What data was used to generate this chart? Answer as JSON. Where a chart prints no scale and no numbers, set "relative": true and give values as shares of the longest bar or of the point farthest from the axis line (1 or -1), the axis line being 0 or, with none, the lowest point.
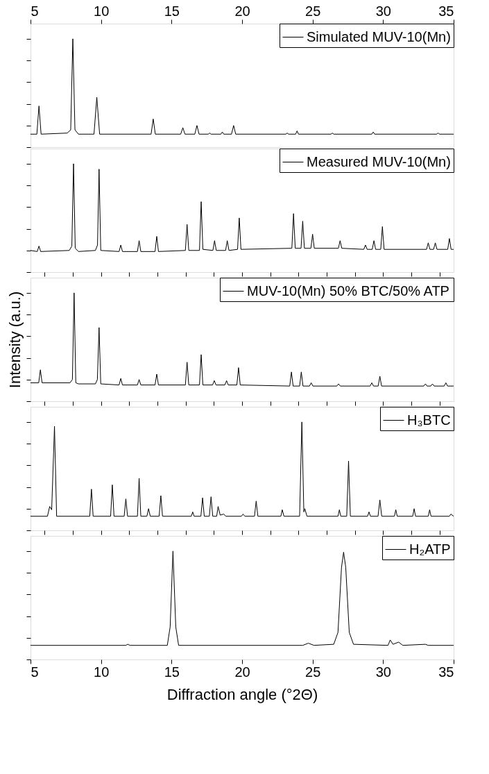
{
  "chart_data": [
    {
      "type": "line",
      "relative": true,
      "xlim": [
        5,
        35
      ],
      "xticks": [
        5,
        10,
        15,
        20,
        25,
        30,
        35
      ],
      "tick_labels": "x",
      "legend": "top right",
      "grid": false,
      "series": [
        {
          "name": "Simulated MUV-10(Mn)",
          "color": "#000000",
          "x": [
            5,
            5.45,
            5.6,
            5.75,
            7.6,
            7.85,
            8.0,
            8.15,
            8.4,
            9.5,
            9.7,
            9.9,
            13.55,
            13.7,
            13.85,
            15.65,
            15.8,
            15.95,
            16.65,
            16.8,
            16.95,
            17.6,
            17.7,
            17.8,
            18.5,
            18.6,
            18.7,
            19.25,
            19.4,
            19.55,
            23.1,
            23.2,
            23.3,
            23.8,
            23.9,
            24.0,
            26.3,
            26.4,
            26.5,
            29.2,
            29.3,
            29.4,
            33.8,
            33.9,
            34.0,
            35
          ],
          "values": [
            0.12,
            0.12,
            0.38,
            0.12,
            0.13,
            0.16,
            1,
            0.16,
            0.12,
            0.12,
            0.46,
            0.12,
            0.12,
            0.26,
            0.12,
            0.12,
            0.18,
            0.12,
            0.12,
            0.2,
            0.12,
            0.12,
            0.13,
            0.12,
            0.12,
            0.14,
            0.12,
            0.12,
            0.2,
            0.12,
            0.12,
            0.13,
            0.12,
            0.12,
            0.15,
            0.12,
            0.12,
            0.13,
            0.12,
            0.12,
            0.14,
            0.12,
            0.12,
            0.13,
            0.12,
            0.12
          ]
        }
      ]
    },
    {
      "type": "line",
      "relative": true,
      "xlim": [
        5,
        35
      ],
      "tick_labels": false,
      "legend": "top right",
      "grid": false,
      "series": [
        {
          "name": "Measured MUV-10(Mn)",
          "color": "#000000",
          "x": [
            5,
            5.48,
            5.6,
            5.72,
            7.75,
            7.93,
            8.05,
            8.17,
            8.4,
            9.6,
            9.75,
            9.86,
            9.98,
            11.28,
            11.4,
            11.52,
            12.58,
            12.7,
            12.82,
            13.83,
            13.95,
            14.07,
            15.98,
            16.1,
            16.22,
            16.98,
            17.1,
            17.22,
            17.93,
            18.05,
            18.17,
            18.83,
            18.95,
            19.07,
            19.68,
            19.8,
            19.92,
            23.53,
            23.65,
            23.77,
            24.18,
            24.3,
            24.42,
            24.88,
            25.0,
            25.12,
            26.83,
            26.95,
            27.07,
            28.63,
            28.75,
            28.87,
            29.23,
            29.35,
            29.47,
            29.83,
            29.95,
            30.07,
            33.08,
            33.2,
            33.32,
            33.58,
            33.7,
            33.82,
            34.58,
            34.7,
            34.82,
            35
          ],
          "values": [
            0.2,
            0.19,
            0.24,
            0.19,
            0.2,
            0.24,
            1,
            0.22,
            0.19,
            0.2,
            0.25,
            0.95,
            0.2,
            0.19,
            0.25,
            0.19,
            0.19,
            0.29,
            0.19,
            0.19,
            0.33,
            0.19,
            0.2,
            0.44,
            0.2,
            0.2,
            0.65,
            0.21,
            0.2,
            0.29,
            0.2,
            0.2,
            0.29,
            0.2,
            0.21,
            0.5,
            0.21,
            0.22,
            0.54,
            0.22,
            0.22,
            0.47,
            0.22,
            0.22,
            0.35,
            0.22,
            0.22,
            0.29,
            0.22,
            0.21,
            0.25,
            0.21,
            0.21,
            0.29,
            0.21,
            0.21,
            0.42,
            0.21,
            0.21,
            0.27,
            0.21,
            0.21,
            0.27,
            0.21,
            0.21,
            0.31,
            0.21,
            0.21
          ]
        }
      ]
    },
    {
      "type": "line",
      "relative": true,
      "xlim": [
        5,
        35
      ],
      "tick_labels": false,
      "legend": "top right",
      "grid": false,
      "ylabel": "Intensity (a.u.)",
      "series": [
        {
          "name": "MUV-10(Mn) 50% BTC/50% ATP",
          "color": "#000000",
          "x": [
            5,
            5.58,
            5.7,
            5.82,
            7.8,
            7.97,
            8.09,
            8.21,
            8.4,
            9.6,
            9.74,
            9.86,
            9.98,
            11.28,
            11.4,
            11.52,
            12.58,
            12.7,
            12.82,
            13.83,
            13.95,
            14.07,
            15.98,
            16.1,
            16.22,
            16.98,
            17.1,
            17.22,
            17.91,
            18.03,
            18.15,
            18.78,
            18.9,
            19.02,
            19.63,
            19.75,
            19.87,
            23.38,
            23.5,
            23.62,
            24.08,
            24.2,
            24.32,
            24.78,
            24.9,
            25.02,
            26.72,
            26.84,
            26.96,
            29.08,
            29.2,
            29.32,
            29.65,
            29.77,
            29.89,
            32.88,
            33.0,
            33.12,
            33.38,
            33.5,
            33.62,
            34.33,
            34.45,
            34.57,
            35
          ],
          "values": [
            0.17,
            0.17,
            0.29,
            0.17,
            0.17,
            0.2,
            1,
            0.17,
            0.16,
            0.16,
            0.2,
            0.68,
            0.16,
            0.15,
            0.21,
            0.15,
            0.15,
            0.2,
            0.15,
            0.15,
            0.25,
            0.15,
            0.15,
            0.36,
            0.15,
            0.15,
            0.43,
            0.15,
            0.15,
            0.19,
            0.15,
            0.15,
            0.19,
            0.15,
            0.15,
            0.31,
            0.15,
            0.14,
            0.27,
            0.14,
            0.14,
            0.27,
            0.14,
            0.14,
            0.17,
            0.14,
            0.14,
            0.16,
            0.14,
            0.14,
            0.17,
            0.14,
            0.14,
            0.23,
            0.14,
            0.14,
            0.16,
            0.14,
            0.14,
            0.16,
            0.14,
            0.14,
            0.17,
            0.14,
            0.14
          ]
        }
      ]
    },
    {
      "type": "line",
      "relative": true,
      "xlim": [
        5,
        35
      ],
      "tick_labels": false,
      "legend": "top right",
      "grid": false,
      "series": [
        {
          "name": "H₃BTC",
          "color": "#000000",
          "x": [
            5,
            6.2,
            6.36,
            6.5,
            6.7,
            6.85,
            9.2,
            9.32,
            9.44,
            10.68,
            10.8,
            10.92,
            11.64,
            11.76,
            11.88,
            12.58,
            12.7,
            12.82,
            13.25,
            13.37,
            13.49,
            14.12,
            14.24,
            14.36,
            16.4,
            16.5,
            16.6,
            17.08,
            17.2,
            17.32,
            17.68,
            17.8,
            17.92,
            18.2,
            18.3,
            18.45,
            18.7,
            18.85,
            19.95,
            20.07,
            20.2,
            20.88,
            21.0,
            21.12,
            22.75,
            22.85,
            22.97,
            24.08,
            24.24,
            24.38,
            24.45,
            24.6,
            26.8,
            26.9,
            27.0,
            27.42,
            27.55,
            27.68,
            28.9,
            29.0,
            29.1,
            29.64,
            29.77,
            29.9,
            30.8,
            30.9,
            31.0,
            32.1,
            32.2,
            32.3,
            33.2,
            33.3,
            33.4,
            34.7,
            34.8,
            35
          ],
          "values": [
            0.13,
            0.13,
            0.22,
            0.19,
            0.96,
            0.13,
            0.13,
            0.38,
            0.13,
            0.13,
            0.42,
            0.13,
            0.13,
            0.29,
            0.13,
            0.13,
            0.48,
            0.13,
            0.13,
            0.2,
            0.13,
            0.13,
            0.32,
            0.13,
            0.13,
            0.17,
            0.13,
            0.13,
            0.3,
            0.13,
            0.13,
            0.31,
            0.13,
            0.13,
            0.22,
            0.14,
            0.15,
            0.13,
            0.13,
            0.15,
            0.13,
            0.13,
            0.27,
            0.13,
            0.13,
            0.19,
            0.13,
            0.13,
            1,
            0.17,
            0.2,
            0.13,
            0.13,
            0.19,
            0.13,
            0.13,
            0.64,
            0.13,
            0.13,
            0.17,
            0.13,
            0.13,
            0.28,
            0.13,
            0.13,
            0.19,
            0.13,
            0.13,
            0.2,
            0.13,
            0.13,
            0.19,
            0.13,
            0.13,
            0.15,
            0.13
          ]
        }
      ]
    },
    {
      "type": "line",
      "relative": true,
      "xlim": [
        5,
        35
      ],
      "xticks": [
        5,
        10,
        15,
        20,
        25,
        30,
        35
      ],
      "tick_labels": "x",
      "xlabel": "Diffraction angle (°2Θ)",
      "legend": "top right",
      "grid": false,
      "series": [
        {
          "name": "H₂ATP",
          "color": "#000000",
          "x": [
            5,
            11.75,
            11.9,
            12.05,
            14.7,
            14.9,
            15.1,
            15.3,
            15.5,
            24.3,
            24.7,
            25.1,
            26.5,
            26.8,
            27.05,
            27.2,
            27.35,
            27.6,
            27.9,
            30.35,
            30.5,
            30.7,
            31.1,
            31.4,
            33.0,
            33.2,
            35
          ],
          "values": [
            0.13,
            0.13,
            0.14,
            0.13,
            0.13,
            0.3,
            1,
            0.3,
            0.13,
            0.13,
            0.15,
            0.13,
            0.14,
            0.25,
            0.85,
            0.99,
            0.85,
            0.25,
            0.14,
            0.13,
            0.18,
            0.14,
            0.16,
            0.13,
            0.14,
            0.13,
            0.13
          ]
        }
      ]
    }
  ]
}
